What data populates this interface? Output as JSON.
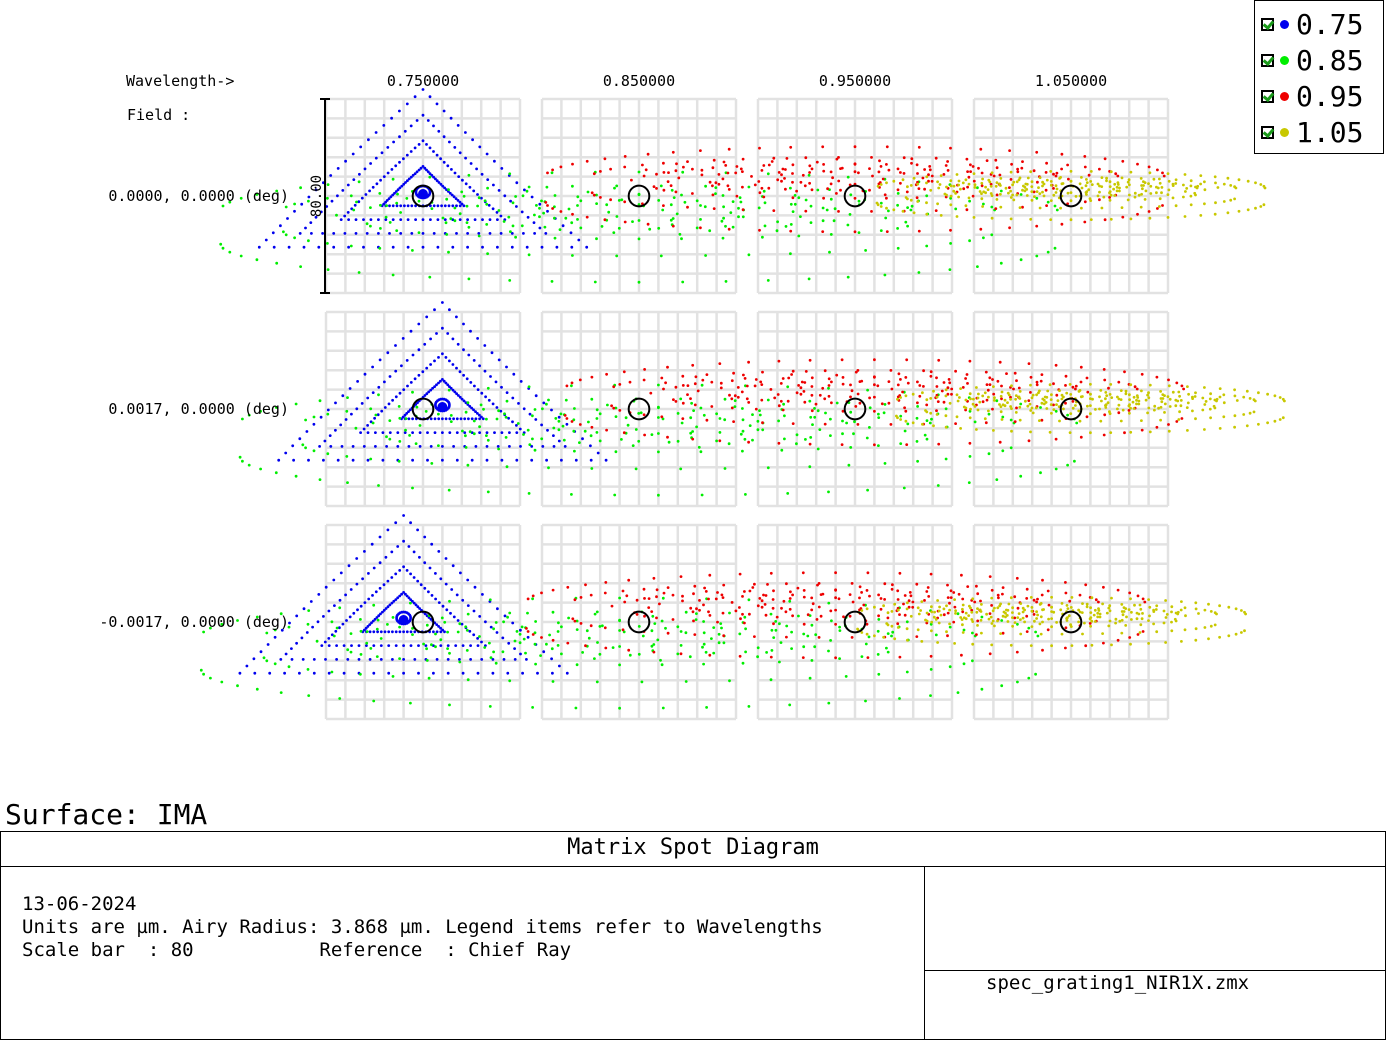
{
  "chart_data": {
    "type": "scatter",
    "title": "Matrix Spot Diagram",
    "wavelength_header": "Wavelength->",
    "field_header": "Field      :",
    "wavelength_labels": [
      "0.750000",
      "0.850000",
      "0.950000",
      "1.050000"
    ],
    "field_labels": [
      "0.0000, 0.0000 (deg)",
      "0.0017, 0.0000 (deg)",
      "-0.0017, 0.0000 (deg)"
    ],
    "scale_bar_label": "80.00",
    "scale_bar_value_um": 80,
    "units": "µm",
    "airy_radius_um": 3.868,
    "grid": true,
    "legend_position": "top-right",
    "series": [
      {
        "name": "0.75",
        "color": "#0000ee",
        "shape": "triangle",
        "width_um": 135,
        "height_um": 65,
        "x_offset_um": 0
      },
      {
        "name": "0.85",
        "color": "#00ee00",
        "shape": "ellipse",
        "width_um": 345,
        "height_um": 57,
        "x_offset_um": 0
      },
      {
        "name": "0.95",
        "color": "#ee0000",
        "shape": "ellipse",
        "width_um": 255,
        "height_um": 44,
        "x_offset_um": 0
      },
      {
        "name": "1.05",
        "color": "#c8c800",
        "shape": "ellipse",
        "width_um": 160,
        "height_um": 25,
        "x_offset_um": 0
      }
    ],
    "field_shift_um": [
      0,
      8,
      -8
    ]
  },
  "legend": {
    "items": [
      {
        "label": "0.75",
        "color": "#0000ee"
      },
      {
        "label": "0.85",
        "color": "#00ee00"
      },
      {
        "label": "0.95",
        "color": "#ee0000"
      },
      {
        "label": "1.05",
        "color": "#c8c800"
      }
    ]
  },
  "surface": {
    "label": "Surface: IMA"
  },
  "info": {
    "date": "13-06-2024",
    "units_line": "Units are µm. Airy Radius: 3.868 µm. Legend items refer to Wavelengths",
    "scale_line": "Scale bar  : 80           Reference  : Chief Ray",
    "filename": "spec_grating1_NIR1X.zmx"
  }
}
